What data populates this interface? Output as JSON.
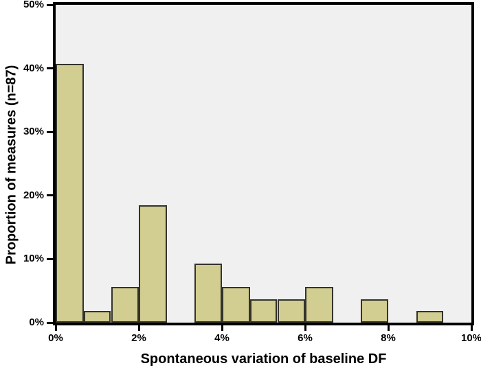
{
  "chart_data": {
    "type": "bar",
    "subtype": "histogram",
    "title": "",
    "xlabel": "Spontaneous variation of baseline DF",
    "ylabel": "Proportion of measures (n=87)",
    "xlim": [
      0,
      10
    ],
    "ylim": [
      0,
      50
    ],
    "x_ticks": [
      {
        "value": 0,
        "label": "0%"
      },
      {
        "value": 2,
        "label": "2%"
      },
      {
        "value": 4,
        "label": "4%"
      },
      {
        "value": 6,
        "label": "6%"
      },
      {
        "value": 8,
        "label": "8%"
      },
      {
        "value": 10,
        "label": "10%"
      }
    ],
    "y_ticks": [
      {
        "value": 0,
        "label": "0%"
      },
      {
        "value": 10,
        "label": "10%"
      },
      {
        "value": 20,
        "label": "20%"
      },
      {
        "value": 30,
        "label": "30%"
      },
      {
        "value": 40,
        "label": "40%"
      },
      {
        "value": 50,
        "label": "50%"
      }
    ],
    "grid": "off",
    "legend": "none",
    "bin_width_pct": 0.667,
    "bins": [
      {
        "start": 0.0,
        "end": 0.67,
        "value": 40.7
      },
      {
        "start": 0.67,
        "end": 1.33,
        "value": 1.8
      },
      {
        "start": 1.33,
        "end": 2.0,
        "value": 5.6
      },
      {
        "start": 2.0,
        "end": 2.67,
        "value": 18.5
      },
      {
        "start": 2.67,
        "end": 3.33,
        "value": 0
      },
      {
        "start": 3.33,
        "end": 4.0,
        "value": 9.3
      },
      {
        "start": 4.0,
        "end": 4.67,
        "value": 5.6
      },
      {
        "start": 4.67,
        "end": 5.33,
        "value": 3.7
      },
      {
        "start": 5.33,
        "end": 6.0,
        "value": 3.7
      },
      {
        "start": 6.0,
        "end": 6.67,
        "value": 5.6
      },
      {
        "start": 6.67,
        "end": 7.33,
        "value": 0
      },
      {
        "start": 7.33,
        "end": 8.0,
        "value": 3.7
      },
      {
        "start": 8.0,
        "end": 8.67,
        "value": 0
      },
      {
        "start": 8.67,
        "end": 9.33,
        "value": 1.8
      },
      {
        "start": 9.33,
        "end": 10.0,
        "value": 0
      }
    ],
    "colors": {
      "bar_fill": "#d2cd90",
      "bar_border": "#33332b",
      "plot_bg": "#f0f0f0",
      "axis": "#000000",
      "text": "#000000",
      "page_bg": "#ffffff"
    }
  }
}
